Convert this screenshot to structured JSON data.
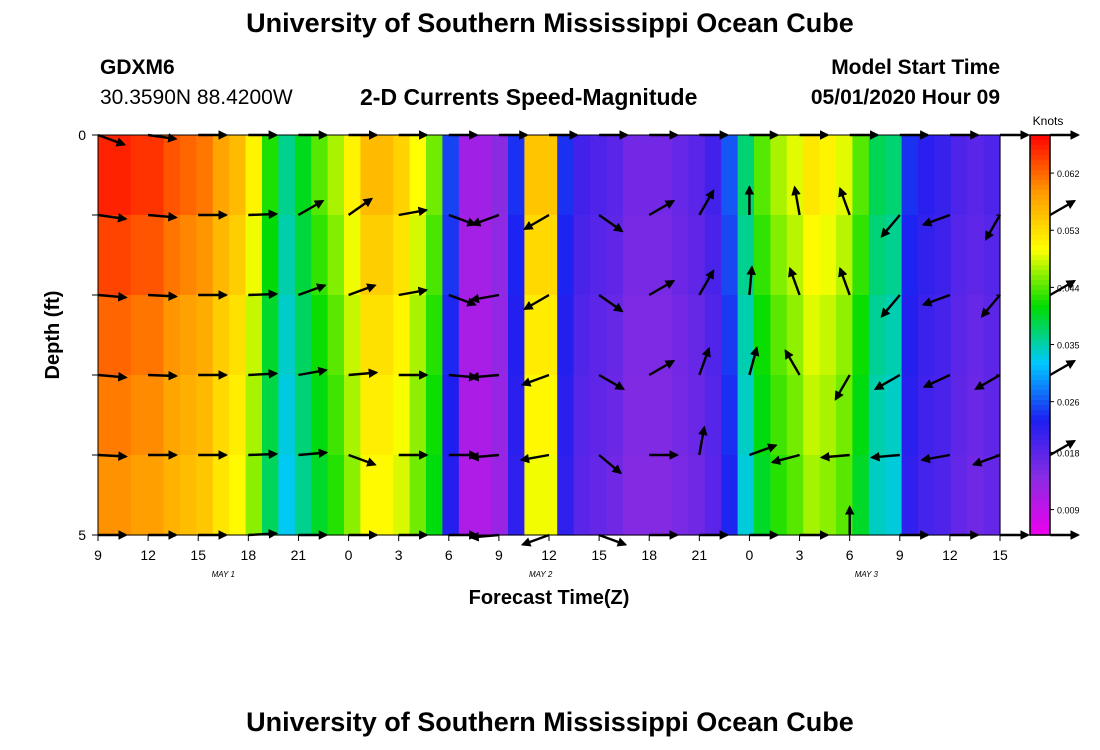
{
  "header": {
    "title": "University of Southern Mississippi Ocean Cube",
    "footer_title": "University of Southern Mississippi Ocean Cube",
    "station_id": "GDXM6",
    "station_coords": "30.3590N 88.4200W",
    "product": "2-D Currents Speed-Magnitude",
    "start_label": "Model Start Time",
    "start_value": "05/01/2020 Hour 09"
  },
  "chart_data": {
    "type": "heatmap",
    "title": "2-D Currents Speed-Magnitude",
    "xlabel": "Forecast Time(Z)",
    "ylabel": "Depth (ft)",
    "x_hours_range": [
      0,
      54
    ],
    "y_range": [
      0,
      5
    ],
    "y_ticks": [
      {
        "value": 0,
        "label": "0"
      },
      {
        "value": 1,
        "label": ""
      },
      {
        "value": 2,
        "label": ""
      },
      {
        "value": 3,
        "label": ""
      },
      {
        "value": 4,
        "label": ""
      },
      {
        "value": 5,
        "label": "5"
      }
    ],
    "x_tick_labels": [
      "9",
      "12",
      "15",
      "18",
      "21",
      "0",
      "3",
      "6",
      "9",
      "12",
      "15",
      "18",
      "21",
      "0",
      "3",
      "6",
      "9",
      "12",
      "15"
    ],
    "date_labels": [
      {
        "hour": 7.5,
        "label": "MAY 1"
      },
      {
        "hour": 26.5,
        "label": "MAY 2"
      },
      {
        "hour": 46,
        "label": "MAY 3"
      }
    ],
    "colorbar": {
      "label": "Knots",
      "min": 0.005,
      "max": 0.068,
      "ticks": [
        "0.009",
        "0.018",
        "0.026",
        "0.035",
        "0.044",
        "0.053",
        "0.062"
      ],
      "tick_values": [
        0.009,
        0.018,
        0.026,
        0.035,
        0.044,
        0.053,
        0.062
      ],
      "colors": [
        "#ee00ee",
        "#8a2be2",
        "#1e1ef0",
        "#00c8ff",
        "#00dc00",
        "#ffff00",
        "#ff9900",
        "#ff0000"
      ]
    },
    "speed_by_hour": [
      0.066,
      0.066,
      0.065,
      0.065,
      0.063,
      0.062,
      0.061,
      0.058,
      0.056,
      0.051,
      0.042,
      0.036,
      0.04,
      0.044,
      0.047,
      0.051,
      0.056,
      0.056,
      0.054,
      0.05,
      0.045,
      0.025,
      0.012,
      0.012,
      0.014,
      0.024,
      0.055,
      0.055,
      0.024,
      0.02,
      0.019,
      0.018,
      0.016,
      0.016,
      0.016,
      0.017,
      0.018,
      0.02,
      0.026,
      0.037,
      0.044,
      0.047,
      0.049,
      0.052,
      0.051,
      0.049,
      0.044,
      0.038,
      0.037,
      0.024,
      0.022,
      0.021,
      0.019,
      0.018,
      0.019
    ],
    "depth_factor": [
      1.0,
      0.97,
      0.94,
      0.92,
      0.9
    ],
    "arrows": [
      {
        "hour": 0,
        "dir_deg": [
          -20,
          -8,
          -5,
          -5,
          -3,
          0
        ]
      },
      {
        "hour": 3,
        "dir_deg": [
          -8,
          -5,
          -3,
          -2,
          0,
          0
        ]
      },
      {
        "hour": 6,
        "dir_deg": [
          0,
          0,
          0,
          0,
          0,
          0
        ]
      },
      {
        "hour": 9,
        "dir_deg": [
          0,
          2,
          2,
          3,
          2,
          3
        ]
      },
      {
        "hour": 12,
        "dir_deg": [
          0,
          30,
          20,
          10,
          5,
          0
        ]
      },
      {
        "hour": 15,
        "dir_deg": [
          0,
          35,
          20,
          5,
          -20,
          0
        ]
      },
      {
        "hour": 18,
        "dir_deg": [
          0,
          10,
          10,
          0,
          0,
          0
        ]
      },
      {
        "hour": 21,
        "dir_deg": [
          0,
          -20,
          -20,
          -5,
          0,
          0
        ]
      },
      {
        "hour": 24,
        "dir_deg": [
          0,
          -160,
          -170,
          -175,
          -175,
          -175
        ]
      },
      {
        "hour": 27,
        "dir_deg": [
          0,
          -150,
          -150,
          -160,
          -170,
          -160
        ]
      },
      {
        "hour": 30,
        "dir_deg": [
          0,
          -35,
          -35,
          -30,
          -40,
          -20
        ]
      },
      {
        "hour": 33,
        "dir_deg": [
          0,
          30,
          30,
          30,
          0,
          0
        ]
      },
      {
        "hour": 36,
        "dir_deg": [
          0,
          60,
          60,
          70,
          80,
          0
        ]
      },
      {
        "hour": 39,
        "dir_deg": [
          0,
          90,
          85,
          75,
          20,
          0
        ]
      },
      {
        "hour": 42,
        "dir_deg": [
          0,
          100,
          110,
          120,
          -165,
          0
        ]
      },
      {
        "hour": 45,
        "dir_deg": [
          0,
          110,
          110,
          -120,
          -175,
          90
        ]
      },
      {
        "hour": 48,
        "dir_deg": [
          0,
          -130,
          -130,
          -150,
          -175,
          0
        ]
      },
      {
        "hour": 51,
        "dir_deg": [
          0,
          -160,
          -160,
          -155,
          -170,
          0
        ]
      },
      {
        "hour": 54,
        "dir_deg": [
          0,
          -120,
          -130,
          -150,
          -160,
          0
        ]
      },
      {
        "hour": 57,
        "dir_deg": [
          0,
          30,
          30,
          30,
          30,
          0
        ]
      }
    ]
  }
}
